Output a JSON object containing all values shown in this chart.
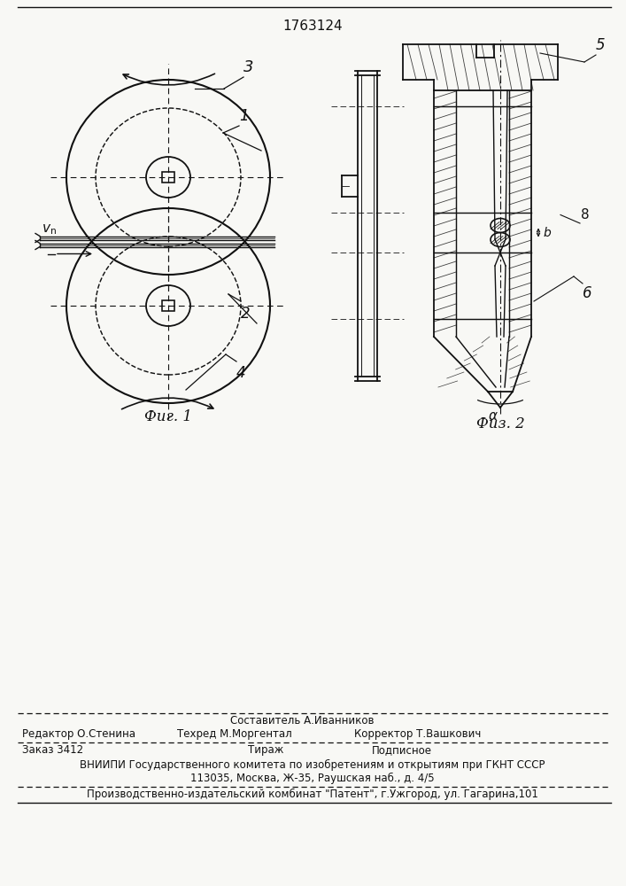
{
  "patent_number": "1763124",
  "background_color": "#f8f8f5",
  "line_color": "#111111",
  "fig1_caption": "Фиг. 1",
  "fig2_caption": "Физ. 2",
  "footer": {
    "line1_center1": "Составитель А.Иванников",
    "line1_left": "Редактор О.Стенина",
    "line1_center2": "Техред М.Моргентал",
    "line1_right": "Корректор Т.Вашкович",
    "line2_left": "Заказ 3412",
    "line2_center": "Тираж",
    "line2_right": "Подписное",
    "line3": "ВНИИПИ Государственного комитета по изобретениям и открытиям при ГКНТ СССР",
    "line4": "113035, Москва, Ж-35, Раушская наб., д. 4/5",
    "line5": "Производственно-издательский комбинат \"Патент\", г.Ужгород, ул. Гагарина,101"
  }
}
